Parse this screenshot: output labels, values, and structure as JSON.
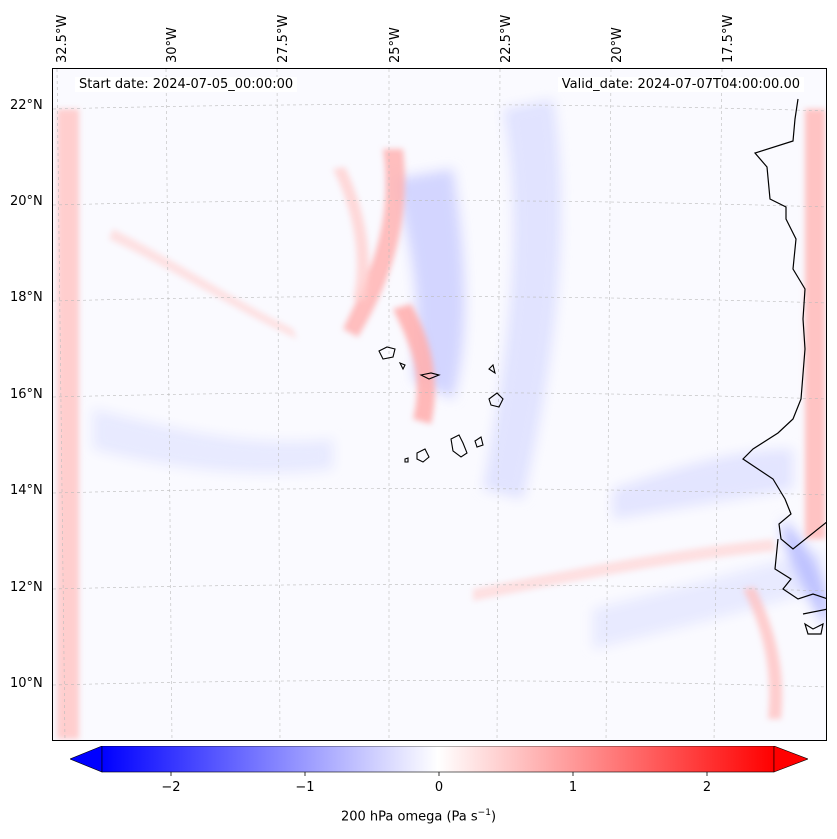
{
  "header": {
    "start_date": "Start date: 2024-07-05_00:00:00",
    "valid_date": "Valid_date: 2024-07-07T04:00:00.00"
  },
  "lon_labels": [
    "32.5°W",
    "30°W",
    "27.5°W",
    "25°W",
    "22.5°W",
    "20°W",
    "17.5°W"
  ],
  "lat_labels": [
    "22°N",
    "20°N",
    "18°N",
    "16°N",
    "14°N",
    "12°N",
    "10°N"
  ],
  "colorbar": {
    "label_main": "200 hPa omega (Pa s",
    "label_sup": "−1",
    "label_end": ")",
    "ticks": [
      "−2",
      "−1",
      "0",
      "1",
      "2"
    ],
    "tick_values": [
      -2,
      -1,
      0,
      1,
      2
    ],
    "range": [
      -2.5,
      2.5
    ],
    "cmap": "bwr",
    "color_min": "#0000ff",
    "color_mid": "#ffffff",
    "color_max": "#ff0000"
  }
}
